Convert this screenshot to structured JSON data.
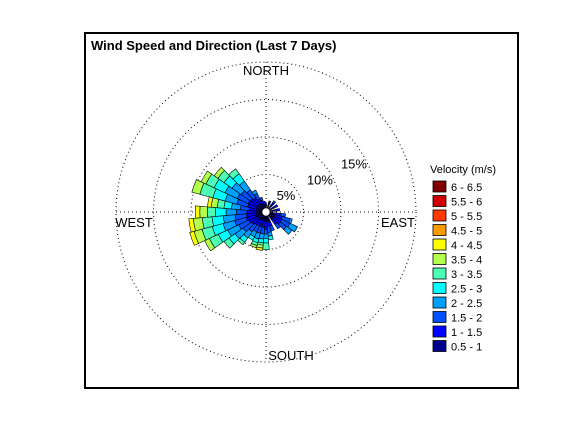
{
  "chart_data": {
    "type": "wind-rose",
    "title": "Wind Speed and Direction (Last 7 Days)",
    "directions": {
      "north": "NORTH",
      "south": "SOUTH",
      "east": "EAST",
      "west": "WEST"
    },
    "rings": [
      {
        "value": 5,
        "label": "5%"
      },
      {
        "value": 10,
        "label": "10%"
      },
      {
        "value": 15,
        "label": "15%"
      },
      {
        "value": 20,
        "label": ""
      }
    ],
    "r_max": 20,
    "legend": {
      "title": "Velocity (m/s)",
      "position": "right",
      "bins": [
        {
          "label": "6 - 6.5",
          "color": "#800000"
        },
        {
          "label": "5.5 - 6",
          "color": "#d20000"
        },
        {
          "label": "5 - 5.5",
          "color": "#ff3800"
        },
        {
          "label": "4.5 - 5",
          "color": "#ff9a00"
        },
        {
          "label": "4 - 4.5",
          "color": "#ffff00"
        },
        {
          "label": "3.5 - 4",
          "color": "#b4ff4b"
        },
        {
          "label": "3 - 3.5",
          "color": "#4bffb4"
        },
        {
          "label": "2.5 - 3",
          "color": "#00ffff"
        },
        {
          "label": "2 - 2.5",
          "color": "#00a0ff"
        },
        {
          "label": "1.5 - 2",
          "color": "#0050ff"
        },
        {
          "label": "1 - 1.5",
          "color": "#0000ff"
        },
        {
          "label": "0.5 - 1",
          "color": "#00008f"
        }
      ]
    },
    "sector_width_deg": 10,
    "series_order_inner_to_outer": [
      "0.5 - 1",
      "1 - 1.5",
      "1.5 - 2",
      "2 - 2.5",
      "2.5 - 3",
      "3 - 3.5",
      "3.5 - 4",
      "4 - 4.5",
      "4.5 - 5",
      "5 - 5.5",
      "5.5 - 6",
      "6 - 6.5"
    ],
    "sectors": [
      {
        "dir": 0,
        "values": [
          0.6
        ]
      },
      {
        "dir": 20,
        "values": [
          0.6,
          0.4
        ]
      },
      {
        "dir": 40,
        "values": [
          0.5,
          0.5,
          0.3
        ]
      },
      {
        "dir": 60,
        "values": [
          0.6,
          0.6
        ]
      },
      {
        "dir": 80,
        "values": [
          0.6,
          0.7
        ]
      },
      {
        "dir": 100,
        "values": [
          0.6,
          0.8,
          0.7
        ]
      },
      {
        "dir": 110,
        "values": [
          0.7,
          1.0,
          1.1,
          0.3
        ]
      },
      {
        "dir": 120,
        "values": [
          0.8,
          1.0,
          1.2,
          1.1
        ]
      },
      {
        "dir": 130,
        "values": [
          0.7,
          1.1,
          1.0,
          0.9
        ]
      },
      {
        "dir": 140,
        "values": [
          0.7,
          0.8,
          0.7
        ]
      },
      {
        "dir": 160,
        "values": [
          0.6,
          0.8,
          0.7
        ]
      },
      {
        "dir": 170,
        "values": [
          0.6,
          0.8,
          0.8,
          0.5,
          0.5
        ]
      },
      {
        "dir": 180,
        "values": [
          0.8,
          1.0,
          0.6,
          0.6,
          0.6,
          0.9
        ]
      },
      {
        "dir": 190,
        "values": [
          0.7,
          0.9,
          0.8,
          0.7,
          0.5,
          0.3,
          0.4,
          0.3
        ]
      },
      {
        "dir": 200,
        "values": [
          0.6,
          0.9,
          0.9,
          0.8,
          0.5,
          0.4,
          0.3
        ]
      },
      {
        "dir": 210,
        "values": [
          0.6,
          0.9,
          0.9,
          0.7,
          0.5
        ]
      },
      {
        "dir": 220,
        "values": [
          0.6,
          1.0,
          1.1,
          1.0,
          0.7,
          0.4
        ]
      },
      {
        "dir": 230,
        "values": [
          0.7,
          1.1,
          1.4,
          1.3,
          1.0,
          0.8
        ]
      },
      {
        "dir": 240,
        "values": [
          0.8,
          1.2,
          1.5,
          1.6,
          1.4,
          1.3,
          0.7
        ]
      },
      {
        "dir": 250,
        "values": [
          0.9,
          1.3,
          1.6,
          1.6,
          1.5,
          1.4,
          1.1,
          0.6
        ]
      },
      {
        "dir": 260,
        "values": [
          0.8,
          1.3,
          1.5,
          1.6,
          1.5,
          1.3,
          1.2,
          0.6
        ]
      },
      {
        "dir": 270,
        "values": [
          0.8,
          1.2,
          1.4,
          1.4,
          1.4,
          1.1,
          1.0,
          0.6
        ]
      },
      {
        "dir": 280,
        "values": [
          0.7,
          1.0,
          1.2,
          1.2,
          1.0,
          0.9,
          0.8,
          0.5
        ]
      },
      {
        "dir": 290,
        "values": [
          0.8,
          1.2,
          1.5,
          1.6,
          1.7,
          1.8,
          1.1
        ]
      },
      {
        "dir": 300,
        "values": [
          0.8,
          1.3,
          1.6,
          1.8,
          1.6,
          1.2,
          0.7
        ]
      },
      {
        "dir": 310,
        "values": [
          0.8,
          1.2,
          1.5,
          1.5,
          1.3,
          1.0,
          0.6
        ]
      },
      {
        "dir": 320,
        "values": [
          0.7,
          1.1,
          1.3,
          1.4,
          1.2,
          0.8
        ]
      },
      {
        "dir": 330,
        "values": [
          0.6,
          0.8,
          0.8,
          0.5
        ]
      },
      {
        "dir": 340,
        "values": [
          0.5,
          0.6,
          0.4
        ]
      },
      {
        "dir": 350,
        "values": [
          0.5,
          0.4
        ]
      }
    ]
  }
}
